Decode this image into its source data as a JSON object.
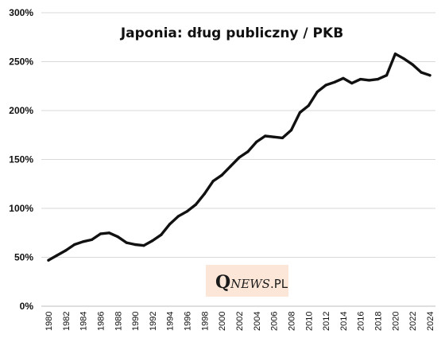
{
  "chart_data": {
    "type": "line",
    "title": "Japonia: dług publiczny / PKB",
    "xlabel": "",
    "ylabel": "",
    "ylim": [
      0,
      300
    ],
    "y_ticks": [
      "0%",
      "50%",
      "100%",
      "150%",
      "200%",
      "250%",
      "300%"
    ],
    "x_tick_labels": [
      "1980",
      "1982",
      "1984",
      "1986",
      "1988",
      "1990",
      "1992",
      "1994",
      "1996",
      "1998",
      "2000",
      "2002",
      "2004",
      "2006",
      "2008",
      "2010",
      "2012",
      "2014",
      "2016",
      "2018",
      "2020",
      "2022",
      "2024"
    ],
    "grid": "horizontal",
    "line_color": "#111111",
    "x": [
      1980,
      1981,
      1982,
      1983,
      1984,
      1985,
      1986,
      1987,
      1988,
      1989,
      1990,
      1991,
      1992,
      1993,
      1994,
      1995,
      1996,
      1997,
      1998,
      1999,
      2000,
      2001,
      2002,
      2003,
      2004,
      2005,
      2006,
      2007,
      2008,
      2009,
      2010,
      2011,
      2012,
      2013,
      2014,
      2015,
      2016,
      2017,
      2018,
      2019,
      2020,
      2021,
      2022,
      2023,
      2024
    ],
    "values": [
      47,
      52,
      57,
      63,
      66,
      68,
      74,
      75,
      71,
      65,
      63,
      62,
      67,
      73,
      84,
      92,
      97,
      104,
      115,
      128,
      134,
      143,
      152,
      158,
      168,
      174,
      173,
      172,
      180,
      198,
      205,
      219,
      226,
      229,
      233,
      228,
      232,
      231,
      232,
      236,
      258,
      253,
      247,
      239,
      236
    ]
  },
  "watermark": {
    "q": "Q",
    "news": "NEWS",
    "pl": ".PL",
    "bg_color": "#fbe6d7"
  }
}
